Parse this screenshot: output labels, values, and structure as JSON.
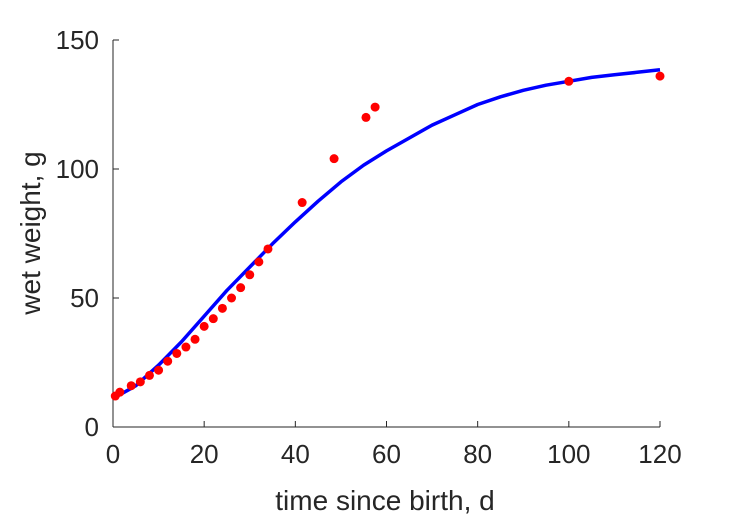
{
  "chart_data": {
    "type": "scatter",
    "title": "",
    "xlabel": "time since birth, d",
    "ylabel": "wet weight, g",
    "xlim": [
      0,
      120
    ],
    "ylim": [
      0,
      150
    ],
    "xticks": [
      0,
      20,
      40,
      60,
      80,
      100,
      120
    ],
    "yticks": [
      0,
      50,
      100,
      150
    ],
    "grid": false,
    "colors": {
      "data": "#ff0000",
      "fit": "#0000ff",
      "axis": "#262626"
    },
    "series": [
      {
        "kind": "scatter",
        "x": [
          0.5,
          1.5,
          4,
          6,
          8,
          10,
          12,
          14,
          16,
          18,
          20,
          22,
          24,
          26,
          28,
          30,
          32,
          34,
          41.5,
          48.5,
          55.5,
          57.5,
          100,
          120
        ],
        "y": [
          12,
          13.5,
          16,
          17.5,
          20,
          22,
          25.5,
          28.5,
          31,
          34,
          39,
          42,
          46,
          50,
          54,
          59,
          64,
          69,
          87,
          104,
          120,
          124,
          134,
          136
        ]
      },
      {
        "kind": "line",
        "x": [
          0,
          5,
          10,
          15,
          20,
          25,
          30,
          35,
          40,
          45,
          50,
          55,
          60,
          65,
          70,
          75,
          80,
          85,
          90,
          95,
          100,
          105,
          110,
          115,
          120
        ],
        "y": [
          11,
          16,
          24,
          33,
          43,
          53,
          62,
          71,
          79.5,
          87.5,
          95,
          101.5,
          107,
          112,
          117,
          121,
          125,
          128,
          130.5,
          132.5,
          134,
          135.5,
          136.5,
          137.5,
          138.5
        ]
      }
    ]
  }
}
